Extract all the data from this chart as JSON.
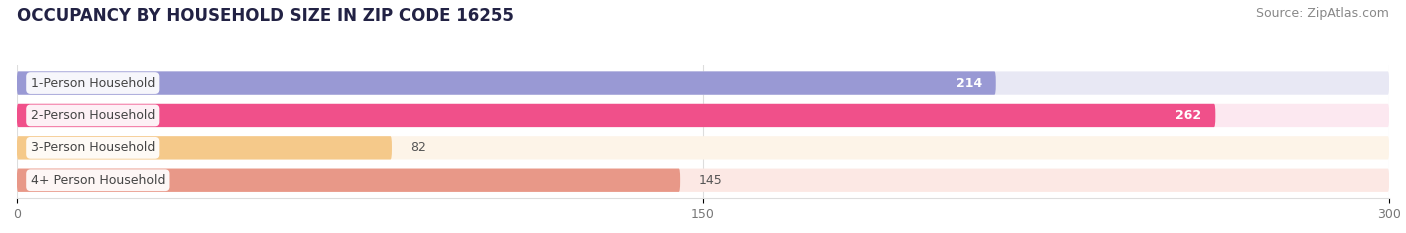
{
  "title": "OCCUPANCY BY HOUSEHOLD SIZE IN ZIP CODE 16255",
  "source": "Source: ZipAtlas.com",
  "categories": [
    "1-Person Household",
    "2-Person Household",
    "3-Person Household",
    "4+ Person Household"
  ],
  "values": [
    214,
    262,
    82,
    145
  ],
  "bar_colors": [
    "#9999d4",
    "#f0508a",
    "#f5c98a",
    "#e89888"
  ],
  "bar_bg_colors": [
    "#e8e8f4",
    "#fce8f0",
    "#fdf4e8",
    "#fce8e4"
  ],
  "xlim": [
    0,
    300
  ],
  "xticks": [
    0,
    150,
    300
  ],
  "title_fontsize": 12,
  "source_fontsize": 9,
  "label_fontsize": 9,
  "value_fontsize": 9,
  "tick_fontsize": 9,
  "background_color": "#ffffff",
  "bar_height": 0.72,
  "bar_gap": 1.0
}
